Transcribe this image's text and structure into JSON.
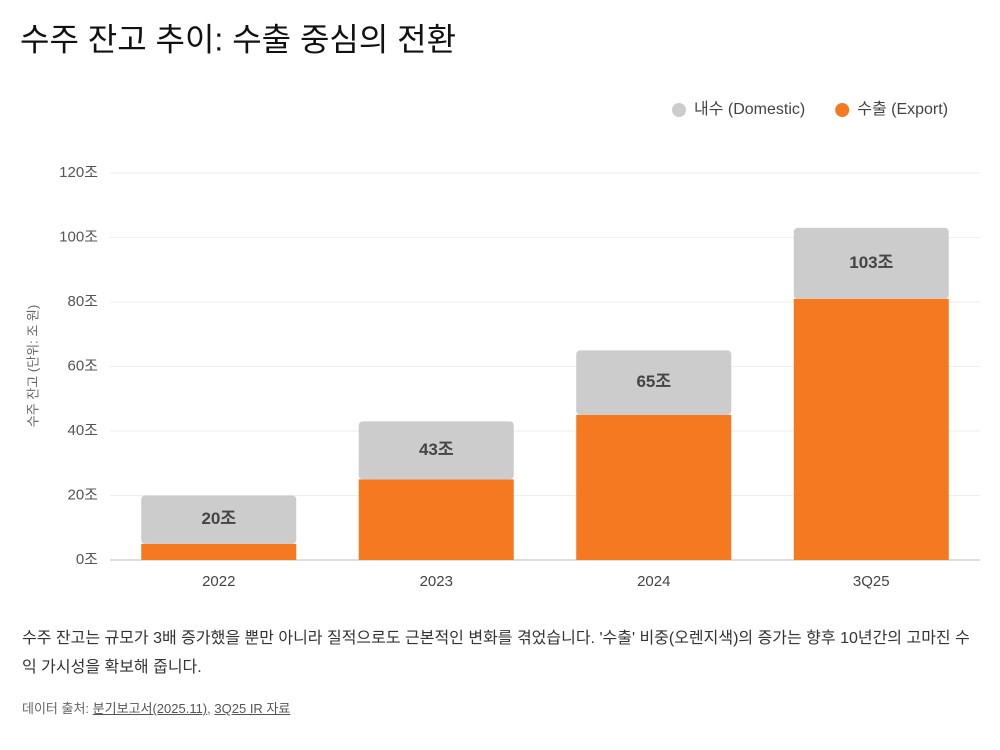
{
  "chart_data": {
    "type": "stacked_bar",
    "title": "수주 잔고 추이: 수출 중심의 전환",
    "y_label": "수주 잔고 (단위: 조 원)",
    "categories": [
      "2022",
      "2023",
      "2024",
      "3Q25"
    ],
    "series": [
      {
        "name": "수출 (Export)",
        "color": "#f47920",
        "values": [
          5,
          25,
          45,
          81
        ]
      },
      {
        "name": "내수 (Domestic)",
        "color": "#cccccc",
        "values": [
          15,
          18,
          20,
          22
        ]
      }
    ],
    "total_labels": [
      "20조",
      "43조",
      "65조",
      "103조"
    ],
    "ylim": [
      0,
      120
    ],
    "yticks": [
      {
        "value": 0,
        "label": "0조"
      },
      {
        "value": 20,
        "label": "20조"
      },
      {
        "value": 40,
        "label": "40조"
      },
      {
        "value": 60,
        "label": "60조"
      },
      {
        "value": 80,
        "label": "80조"
      },
      {
        "value": 100,
        "label": "100조"
      },
      {
        "value": 120,
        "label": "120조"
      }
    ],
    "grid": true,
    "legend_order": [
      1,
      0
    ]
  },
  "description": "수주 잔고는 규모가 3배 증가했을 뿐만 아니라 질적으로도 근본적인 변화를 겪었습니다. '수출' 비중(오렌지색)의 증가는 향후 10년간의 고마진 수익 가시성을 확보해 줍니다.",
  "source": {
    "prefix": "데이터 출처:",
    "links": [
      "분기보고서(2025.11)",
      "3Q25 IR 자료"
    ],
    "separator": ","
  }
}
